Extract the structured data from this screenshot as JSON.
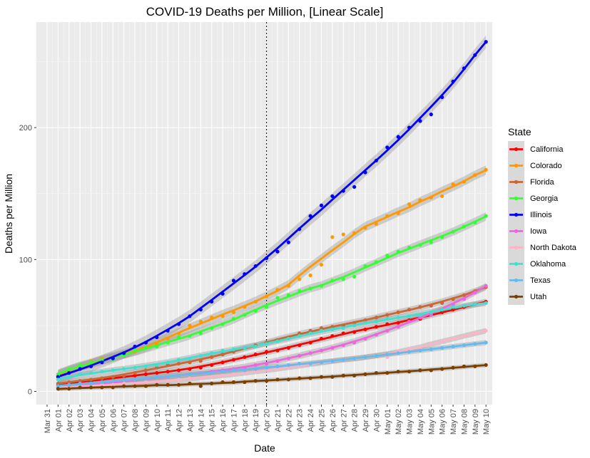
{
  "chart_data": {
    "type": "scatter",
    "title": "COVID-19 Deaths per Million, [Linear Scale]",
    "xlabel": "Date",
    "ylabel": "Deaths per Million",
    "x_ticks": [
      "Mar 31",
      "Apr 01",
      "Apr 02",
      "Apr 03",
      "Apr 04",
      "Apr 05",
      "Apr 06",
      "Apr 07",
      "Apr 08",
      "Apr 09",
      "Apr 10",
      "Apr 11",
      "Apr 12",
      "Apr 13",
      "Apr 14",
      "Apr 15",
      "Apr 16",
      "Apr 17",
      "Apr 18",
      "Apr 19",
      "Apr 20",
      "Apr 21",
      "Apr 22",
      "Apr 23",
      "Apr 24",
      "Apr 25",
      "Apr 26",
      "Apr 27",
      "Apr 28",
      "Apr 29",
      "Apr 30",
      "May 01",
      "May 02",
      "May 03",
      "May 04",
      "May 05",
      "May 06",
      "May 07",
      "May 08",
      "May 09",
      "May 10"
    ],
    "y_ticks": [
      0,
      100,
      200
    ],
    "ylim": [
      -10,
      280
    ],
    "vline_date": "Apr 20",
    "legend_title": "State",
    "legend_position": "right",
    "grid": true,
    "smoothing": "fitted trend line with grey confidence band per state",
    "x_start": "Apr 01",
    "series": [
      {
        "name": "California",
        "color": "#ff0000",
        "values": [
          5,
          6,
          7,
          8,
          9,
          10,
          11,
          12,
          13,
          14,
          15,
          16,
          17,
          18,
          20,
          22,
          24,
          26,
          28,
          30,
          31,
          33,
          35,
          37,
          40,
          42,
          44,
          45,
          47,
          49,
          51,
          52,
          54,
          55,
          58,
          60,
          62,
          64,
          66,
          68
        ]
      },
      {
        "name": "Colorado",
        "color": "#ff9900",
        "values": [
          12,
          17,
          20,
          23,
          25,
          25,
          27,
          30,
          33,
          36,
          40,
          44,
          50,
          53,
          56,
          57,
          60,
          64,
          68,
          72,
          77,
          80,
          85,
          88,
          96,
          117,
          119,
          120,
          124,
          127,
          133,
          135,
          142,
          145,
          147,
          148,
          157,
          159,
          164,
          168
        ]
      },
      {
        "name": "Florida",
        "color": "#cc6633",
        "values": [
          6,
          7,
          8,
          9,
          10,
          11,
          12,
          14,
          16,
          18,
          20,
          21,
          22,
          23,
          26,
          28,
          30,
          33,
          35,
          37,
          39,
          41,
          44,
          46,
          48,
          49,
          50,
          52,
          54,
          56,
          58,
          60,
          62,
          64,
          65,
          67,
          70,
          73,
          76,
          79
        ]
      },
      {
        "name": "Georgia",
        "color": "#33ff33",
        "values": [
          13,
          17,
          20,
          22,
          24,
          24,
          27,
          31,
          33,
          34,
          37,
          41,
          42,
          44,
          48,
          51,
          55,
          58,
          61,
          64,
          71,
          73,
          76,
          78,
          80,
          84,
          85,
          87,
          95,
          98,
          103,
          106,
          109,
          111,
          113,
          117,
          121,
          125,
          128,
          133
        ]
      },
      {
        "name": "Illinois",
        "color": "#0000ff",
        "values": [
          11,
          14,
          17,
          19,
          22,
          25,
          29,
          34,
          37,
          41,
          46,
          51,
          57,
          62,
          68,
          74,
          84,
          89,
          95,
          101,
          106,
          113,
          123,
          133,
          141,
          148,
          152,
          155,
          166,
          175,
          185,
          193,
          200,
          205,
          210,
          223,
          235,
          245,
          255,
          265
        ]
      },
      {
        "name": "Iowa",
        "color": "#ee66dd",
        "values": [
          3,
          4,
          4,
          5,
          6,
          7,
          8,
          8,
          10,
          11,
          11,
          12,
          13,
          14,
          15,
          16,
          17,
          18,
          20,
          21,
          23,
          25,
          27,
          29,
          31,
          33,
          35,
          37,
          40,
          43,
          46,
          49,
          53,
          56,
          58,
          62,
          66,
          70,
          75,
          80
        ]
      },
      {
        "name": "North Dakota",
        "color": "#ffb3c6",
        "values": [
          3,
          3,
          4,
          4,
          5,
          5,
          6,
          6,
          7,
          7,
          8,
          9,
          10,
          10,
          11,
          12,
          13,
          14,
          15,
          16,
          17,
          18,
          19,
          21,
          22,
          23,
          24,
          25,
          26,
          27,
          26,
          30,
          32,
          33,
          36,
          38,
          40,
          42,
          44,
          46
        ]
      },
      {
        "name": "Oklahoma",
        "color": "#40e0d0",
        "values": [
          9,
          11,
          13,
          14,
          15,
          16,
          17,
          18,
          19,
          20,
          22,
          24,
          25,
          27,
          29,
          31,
          32,
          33,
          34,
          36,
          38,
          40,
          42,
          44,
          46,
          47,
          48,
          50,
          52,
          53,
          55,
          56,
          57,
          58,
          60,
          62,
          64,
          65,
          66,
          67
        ]
      },
      {
        "name": "Texas",
        "color": "#66bbee",
        "values": [
          4,
          5,
          6,
          6,
          7,
          8,
          9,
          9,
          10,
          11,
          11,
          12,
          13,
          14,
          14,
          15,
          16,
          16,
          17,
          18,
          19,
          20,
          21,
          21,
          22,
          23,
          24,
          25,
          26,
          27,
          28,
          29,
          30,
          31,
          32,
          33,
          34,
          35,
          36,
          37
        ]
      },
      {
        "name": "Utah",
        "color": "#7b3f00",
        "values": [
          2,
          2,
          3,
          3,
          3,
          3,
          4,
          4,
          4,
          5,
          5,
          5,
          6,
          4,
          6,
          7,
          7,
          7,
          8,
          8,
          9,
          9,
          10,
          10,
          11,
          11,
          12,
          12,
          13,
          14,
          14,
          15,
          15,
          16,
          16,
          17,
          18,
          19,
          19,
          20
        ]
      }
    ]
  }
}
